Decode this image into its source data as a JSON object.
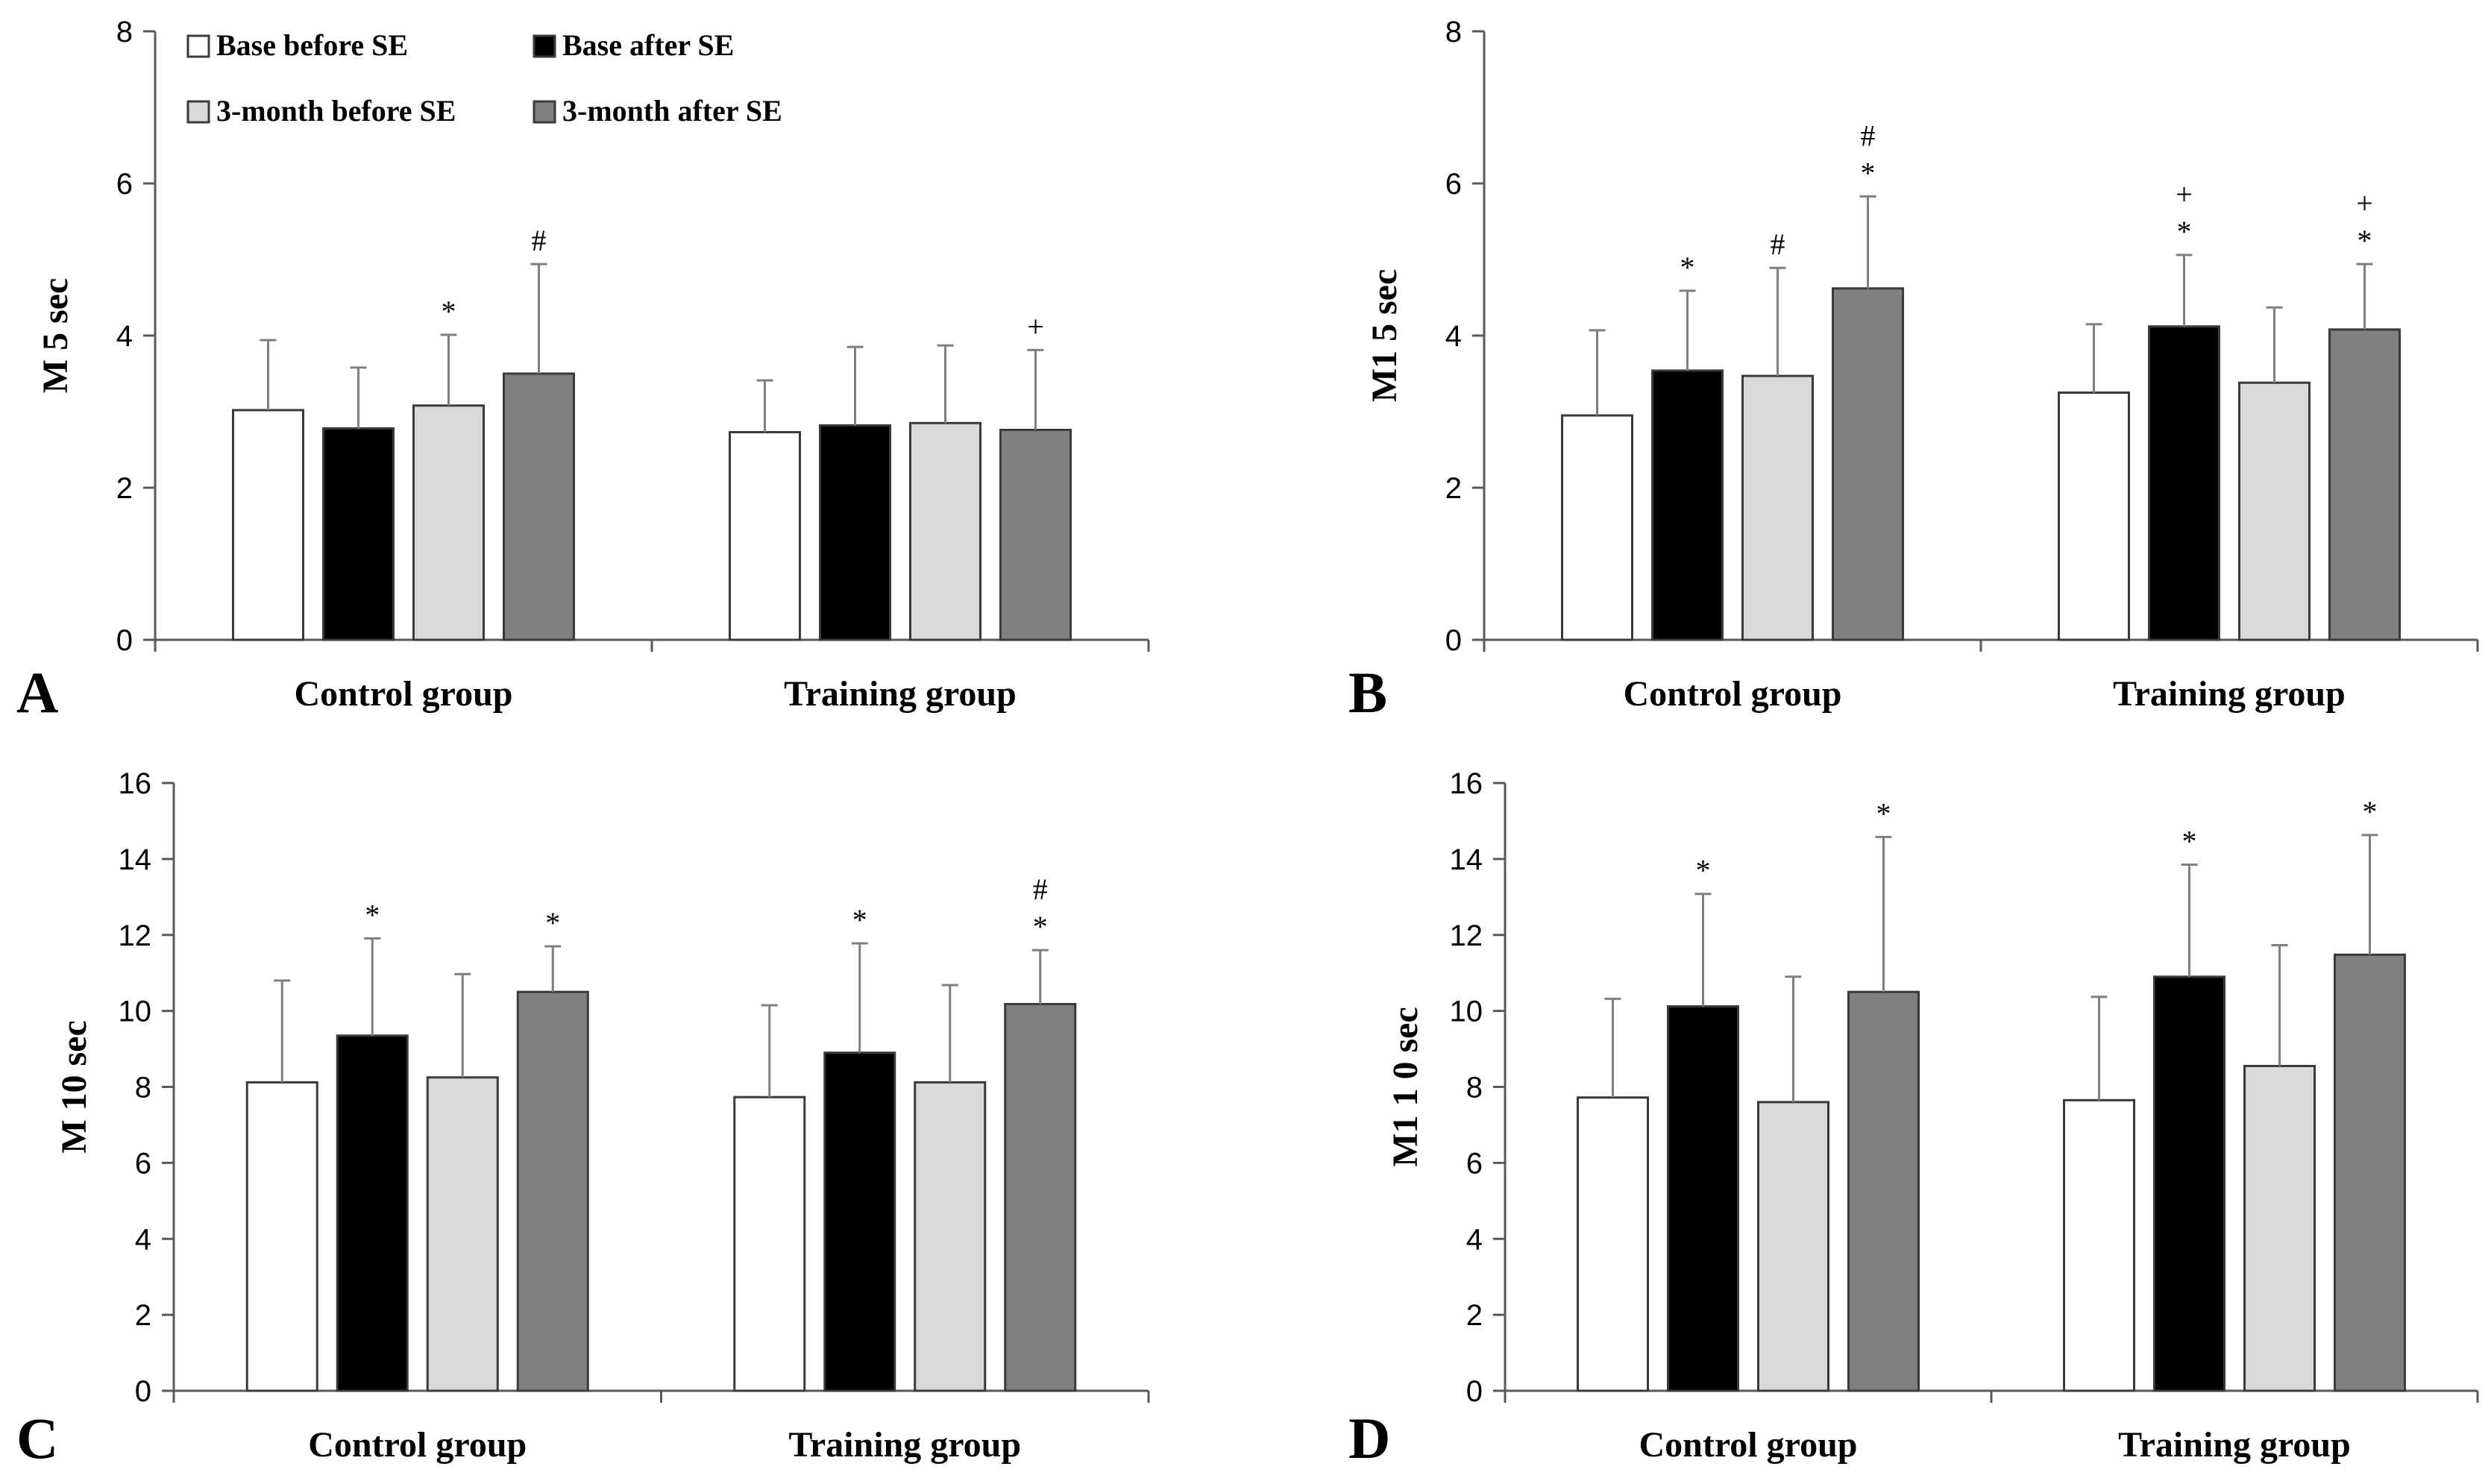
{
  "legend": {
    "items": [
      {
        "label": "Base before SE",
        "color": "#ffffff"
      },
      {
        "label": "Base after SE",
        "color": "#000000"
      },
      {
        "label": "3-month before SE",
        "color": "#d9d9d9"
      },
      {
        "label": "3-month after SE",
        "color": "#808080"
      }
    ]
  },
  "chart_data": [
    {
      "panel": "A",
      "type": "bar",
      "ylabel": "M 5 sec",
      "xlabel": "",
      "ylim": [
        0,
        8
      ],
      "yticks": [
        0,
        2,
        4,
        6,
        8
      ],
      "categories": [
        "Control group",
        "Training group"
      ],
      "series": [
        {
          "name": "Base before SE",
          "color": "#ffffff",
          "values": [
            3.02,
            2.73
          ],
          "errors": [
            0.92,
            0.68
          ],
          "annotations": [
            "",
            ""
          ]
        },
        {
          "name": "Base after SE",
          "color": "#000000",
          "values": [
            2.78,
            2.82
          ],
          "errors": [
            0.8,
            1.03
          ],
          "annotations": [
            "",
            ""
          ]
        },
        {
          "name": "3-month before SE",
          "color": "#d9d9d9",
          "values": [
            3.08,
            2.85
          ],
          "errors": [
            0.93,
            1.02
          ],
          "annotations": [
            "*",
            ""
          ]
        },
        {
          "name": "3-month after SE",
          "color": "#808080",
          "values": [
            3.5,
            2.76
          ],
          "errors": [
            1.44,
            1.05
          ],
          "annotations": [
            "#",
            "+"
          ]
        }
      ]
    },
    {
      "panel": "B",
      "type": "bar",
      "ylabel": "M1 5 sec",
      "xlabel": "",
      "ylim": [
        0,
        8
      ],
      "yticks": [
        0,
        2,
        4,
        6,
        8
      ],
      "categories": [
        "Control group",
        "Training group"
      ],
      "series": [
        {
          "name": "Base before SE",
          "color": "#ffffff",
          "values": [
            2.95,
            3.25
          ],
          "errors": [
            1.12,
            0.9
          ],
          "annotations": [
            "",
            ""
          ]
        },
        {
          "name": "Base after SE",
          "color": "#000000",
          "values": [
            3.54,
            4.12
          ],
          "errors": [
            1.05,
            0.94
          ],
          "annotations": [
            "*",
            "*\n+"
          ]
        },
        {
          "name": "3-month before SE",
          "color": "#d9d9d9",
          "values": [
            3.47,
            3.38
          ],
          "errors": [
            1.42,
            0.99
          ],
          "annotations": [
            "#",
            ""
          ]
        },
        {
          "name": "3-month after SE",
          "color": "#808080",
          "values": [
            4.62,
            4.08
          ],
          "errors": [
            1.21,
            0.86
          ],
          "annotations": [
            "*\n#",
            "*\n+"
          ]
        }
      ]
    },
    {
      "panel": "C",
      "type": "bar",
      "ylabel": "M 10 sec",
      "xlabel": "",
      "ylim": [
        0,
        16
      ],
      "yticks": [
        0,
        2,
        4,
        6,
        8,
        10,
        12,
        14,
        16
      ],
      "categories": [
        "Control group",
        "Training group"
      ],
      "series": [
        {
          "name": "Base before SE",
          "color": "#ffffff",
          "values": [
            8.12,
            7.73
          ],
          "errors": [
            2.68,
            2.42
          ],
          "annotations": [
            "",
            ""
          ]
        },
        {
          "name": "Base after SE",
          "color": "#000000",
          "values": [
            9.35,
            8.9
          ],
          "errors": [
            2.56,
            2.88
          ],
          "annotations": [
            "*",
            "*"
          ]
        },
        {
          "name": "3-month before SE",
          "color": "#d9d9d9",
          "values": [
            8.25,
            8.12
          ],
          "errors": [
            2.72,
            2.56
          ],
          "annotations": [
            "",
            ""
          ]
        },
        {
          "name": "3-month after SE",
          "color": "#808080",
          "values": [
            10.5,
            10.18
          ],
          "errors": [
            1.2,
            1.42
          ],
          "annotations": [
            "*",
            "*\n#"
          ]
        }
      ]
    },
    {
      "panel": "D",
      "type": "bar",
      "ylabel": "M1 1 0 sec",
      "xlabel": "",
      "ylim": [
        0,
        16
      ],
      "yticks": [
        0,
        2,
        4,
        6,
        8,
        10,
        12,
        14,
        16
      ],
      "categories": [
        "Control group",
        "Training group"
      ],
      "series": [
        {
          "name": "Base before SE",
          "color": "#ffffff",
          "values": [
            7.72,
            7.65
          ],
          "errors": [
            2.6,
            2.72
          ],
          "annotations": [
            "",
            ""
          ]
        },
        {
          "name": "Base after SE",
          "color": "#000000",
          "values": [
            10.12,
            10.9
          ],
          "errors": [
            2.96,
            2.95
          ],
          "annotations": [
            "*",
            "*"
          ]
        },
        {
          "name": "3-month before SE",
          "color": "#d9d9d9",
          "values": [
            7.6,
            8.55
          ],
          "errors": [
            3.3,
            3.18
          ],
          "annotations": [
            "",
            ""
          ]
        },
        {
          "name": "3-month after SE",
          "color": "#808080",
          "values": [
            10.5,
            11.48
          ],
          "errors": [
            4.08,
            3.15
          ],
          "annotations": [
            "*",
            "*"
          ]
        }
      ]
    }
  ]
}
